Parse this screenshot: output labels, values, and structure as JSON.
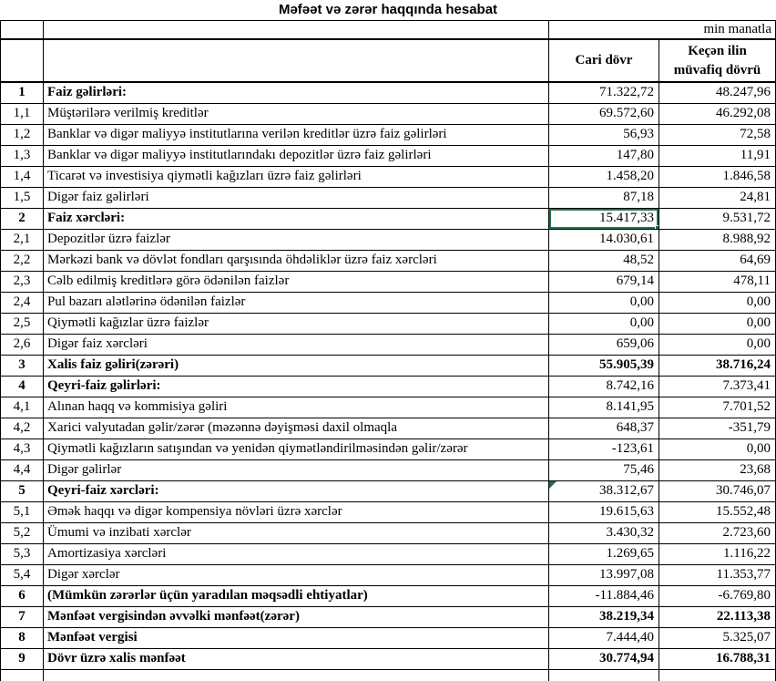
{
  "title": "Məfəət və zərər haqqında hesabat",
  "unit_note": "min manatla",
  "columns": {
    "current": "Cari dövr",
    "previous": "Keçən ilin müvafiq dövrü"
  },
  "selection_color": "#217346",
  "flag_color": "#1E7145",
  "rows": [
    {
      "num": "1",
      "label": "Faiz gəlirləri:",
      "cari": "71.322,72",
      "kecen": "48.247,96",
      "bold": true,
      "vbold": false,
      "selected": false,
      "flag": false
    },
    {
      "num": "1,1",
      "label": "Müştərilərə verilmiş kreditlər",
      "cari": "69.572,60",
      "kecen": "46.292,08",
      "bold": false,
      "vbold": false,
      "selected": false,
      "flag": false
    },
    {
      "num": "1,2",
      "label": "Banklar və digər maliyyə institutlarına verilən kreditlər üzrə faiz gəlirləri",
      "cari": "56,93",
      "kecen": "72,58",
      "bold": false,
      "vbold": false,
      "selected": false,
      "flag": false
    },
    {
      "num": "1,3",
      "label": "Banklar və digər maliyyə institutlarındakı depozitlər üzrə faiz gəlirləri",
      "cari": "147,80",
      "kecen": "11,91",
      "bold": false,
      "vbold": false,
      "selected": false,
      "flag": false
    },
    {
      "num": "1,4",
      "label": "Ticarət və investisiya qiymətli kağızları üzrə faiz gəlirləri",
      "cari": "1.458,20",
      "kecen": "1.846,58",
      "bold": false,
      "vbold": false,
      "selected": false,
      "flag": false
    },
    {
      "num": "1,5",
      "label": "Digər faiz gəlirləri",
      "cari": "87,18",
      "kecen": "24,81",
      "bold": false,
      "vbold": false,
      "selected": false,
      "flag": false
    },
    {
      "num": "2",
      "label": "Faiz xərcləri:",
      "cari": "15.417,33",
      "kecen": "9.531,72",
      "bold": true,
      "vbold": false,
      "selected": true,
      "flag": false
    },
    {
      "num": "2,1",
      "label": "Depozitlər üzrə faizlər",
      "cari": "14.030,61",
      "kecen": "8.988,92",
      "bold": false,
      "vbold": false,
      "selected": false,
      "flag": false
    },
    {
      "num": "2,2",
      "label": "Mərkəzi bank və dövlət fondları qarşısında öhdəliklər üzrə faiz xərcləri",
      "cari": "48,52",
      "kecen": "64,69",
      "bold": false,
      "vbold": false,
      "selected": false,
      "flag": false
    },
    {
      "num": "2,3",
      "label": "Cəlb edilmiş kreditlərə görə ödənilən faizlər",
      "cari": "679,14",
      "kecen": "478,11",
      "bold": false,
      "vbold": false,
      "selected": false,
      "flag": false
    },
    {
      "num": "2,4",
      "label": "Pul bazarı alətlərinə ödənilən faizlər",
      "cari": "0,00",
      "kecen": "0,00",
      "bold": false,
      "vbold": false,
      "selected": false,
      "flag": false
    },
    {
      "num": "2,5",
      "label": "Qiymətli kağızlar üzrə faizlər",
      "cari": "0,00",
      "kecen": "0,00",
      "bold": false,
      "vbold": false,
      "selected": false,
      "flag": false
    },
    {
      "num": "2,6",
      "label": "Digər faiz xərcləri",
      "cari": "659,06",
      "kecen": "0,00",
      "bold": false,
      "vbold": false,
      "selected": false,
      "flag": false
    },
    {
      "num": "3",
      "label": "Xalis faiz gəliri(zərəri)",
      "cari": "55.905,39",
      "kecen": "38.716,24",
      "bold": true,
      "vbold": true,
      "selected": false,
      "flag": false
    },
    {
      "num": "4",
      "label": "Qeyri-faiz gəlirləri:",
      "cari": "8.742,16",
      "kecen": "7.373,41",
      "bold": true,
      "vbold": false,
      "selected": false,
      "flag": false
    },
    {
      "num": "4,1",
      "label": "Alınan haqq və kommisiya gəliri",
      "cari": "8.141,95",
      "kecen": "7.701,52",
      "bold": false,
      "vbold": false,
      "selected": false,
      "flag": false
    },
    {
      "num": "4,2",
      "label": "Xarici valyutadan gəlir/zərər (məzənnə dəyişməsi daxil olmaqla",
      "cari": "648,37",
      "kecen": "-351,79",
      "bold": false,
      "vbold": false,
      "selected": false,
      "flag": false
    },
    {
      "num": "4,3",
      "label": "Qiymətli kağızların satışından və yenidən qiymətləndirilməsindən gəlir/zərər",
      "cari": "-123,61",
      "kecen": "0,00",
      "bold": false,
      "vbold": false,
      "selected": false,
      "flag": false
    },
    {
      "num": "4,4",
      "label": "Digər gəlirlər",
      "cari": "75,46",
      "kecen": "23,68",
      "bold": false,
      "vbold": false,
      "selected": false,
      "flag": false
    },
    {
      "num": "5",
      "label": "Qeyri-faiz xərcləri:",
      "cari": "38.312,67",
      "kecen": "30.746,07",
      "bold": true,
      "vbold": false,
      "selected": false,
      "flag": true
    },
    {
      "num": "5,1",
      "label": "Əmək haqqı və digər kompensiya növləri üzrə xərclər",
      "cari": "19.615,63",
      "kecen": "15.552,48",
      "bold": false,
      "vbold": false,
      "selected": false,
      "flag": false
    },
    {
      "num": "5,2",
      "label": "Ümumi və inzibati xərclər",
      "cari": "3.430,32",
      "kecen": "2.723,60",
      "bold": false,
      "vbold": false,
      "selected": false,
      "flag": false
    },
    {
      "num": "5,3",
      "label": "Amortizasiya xərcləri",
      "cari": "1.269,65",
      "kecen": "1.116,22",
      "bold": false,
      "vbold": false,
      "selected": false,
      "flag": false
    },
    {
      "num": "5,4",
      "label": "Digər xərclər",
      "cari": "13.997,08",
      "kecen": "11.353,77",
      "bold": false,
      "vbold": false,
      "selected": false,
      "flag": false
    },
    {
      "num": "6",
      "label": "(Mümkün zərərlər üçün yaradılan məqsədli ehtiyatlar)",
      "cari": "-11.884,46",
      "kecen": "-6.769,80",
      "bold": true,
      "vbold": false,
      "selected": false,
      "flag": false
    },
    {
      "num": "7",
      "label": "Mənfəət vergisindən əvvəlki mənfəət(zərər)",
      "cari": "38.219,34",
      "kecen": "22.113,38",
      "bold": true,
      "vbold": true,
      "selected": false,
      "flag": false
    },
    {
      "num": "8",
      "label": "Mənfəət vergisi",
      "cari": "7.444,40",
      "kecen": "5.325,07",
      "bold": true,
      "vbold": false,
      "selected": false,
      "flag": false
    },
    {
      "num": "9",
      "label": "Dövr üzrə xalis mənfəət",
      "cari": "30.774,94",
      "kecen": "16.788,31",
      "bold": true,
      "vbold": true,
      "selected": false,
      "flag": false
    }
  ]
}
